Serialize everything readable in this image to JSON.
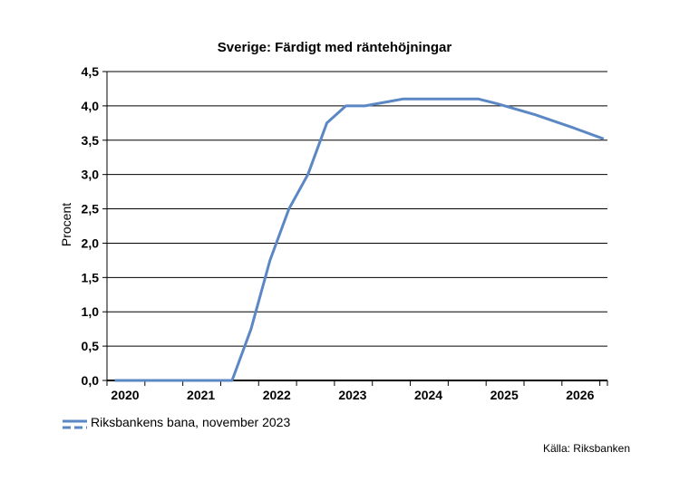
{
  "chart_data": {
    "type": "line",
    "title": "Sverige: Färdigt med räntehöjningar",
    "ylabel": "Procent",
    "xlabel": "",
    "ylim": [
      0,
      4.5
    ],
    "xlim": [
      2020.0,
      2026.6
    ],
    "yticks": [
      0,
      0.5,
      1,
      1.5,
      2,
      2.5,
      3,
      3.5,
      4,
      4.5
    ],
    "ytick_labels": [
      "0,0",
      "0,5",
      "1,0",
      "1,5",
      "2,0",
      "2,5",
      "3,0",
      "3,5",
      "4,0",
      "4,5"
    ],
    "xtick_labels": [
      "2020",
      "2021",
      "2022",
      "2023",
      "2024",
      "2025",
      "2026"
    ],
    "grid": true,
    "legend_position": "bottom-left",
    "series": [
      {
        "name": "Riksbankens bana, november 2023",
        "color": "#5b87c5",
        "x": [
          2020.1,
          2020.5,
          2021.0,
          2021.4,
          2021.65,
          2021.9,
          2022.15,
          2022.4,
          2022.65,
          2022.9,
          2023.15,
          2023.4,
          2023.65,
          2023.9,
          2024.4,
          2024.9,
          2025.15,
          2025.65,
          2026.15,
          2026.55
        ],
        "y": [
          0,
          0,
          0,
          0,
          0,
          0.75,
          1.75,
          2.5,
          3.0,
          3.75,
          4.0,
          4.0,
          4.05,
          4.1,
          4.1,
          4.1,
          4.03,
          3.87,
          3.68,
          3.52
        ]
      }
    ]
  },
  "source": "Källa: Riksbanken"
}
